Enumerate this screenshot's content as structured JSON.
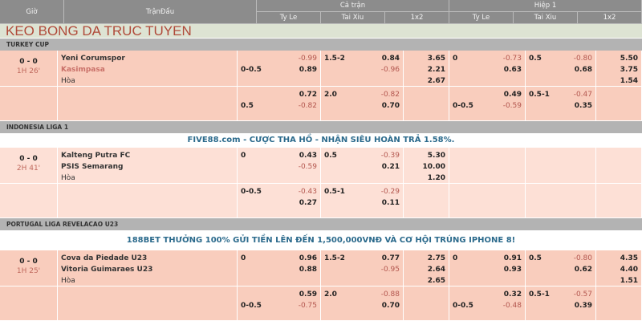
{
  "header": {
    "gio": "Giờ",
    "tran_dau": "TrậnĐấu",
    "ca_tran": "Cả trận",
    "hiep1": "Hiệp 1",
    "cols": [
      "Ty Le",
      "Tai Xiu",
      "1x2",
      "Ty Le",
      "Tai Xiu",
      "1x2"
    ]
  },
  "title": "KEO BONG DA TRUC TUYEN",
  "colors": {
    "header_bg": "#8c8c8c",
    "row_bg": "#f9cfc0",
    "row_bg_light": "#fde0d6",
    "negative": "#b3564e",
    "title": "#b04a3a",
    "banner": "#2b6a8c"
  },
  "leagues": [
    {
      "name": "TURKEY CUP",
      "banner": "",
      "bg": "#f9cdbd",
      "score": "0 - 0",
      "status": "1H 26'",
      "teams": [
        {
          "name": "Yeni Corumspor",
          "red": false
        },
        {
          "name": "Kasimpasa",
          "red": true
        },
        {
          "name": "Hòa",
          "red": false
        }
      ],
      "rows": [
        [
          [
            [
              "",
              "-0.99"
            ],
            [
              "0-0.5",
              "0.89"
            ]
          ],
          [
            [
              "1.5-2",
              "0.84"
            ],
            [
              "",
              "-0.96"
            ]
          ],
          [
            [
              "",
              "3.65"
            ],
            [
              "",
              "2.21"
            ],
            [
              "",
              "2.67"
            ]
          ],
          [
            [
              "0",
              "-0.73"
            ],
            [
              "",
              "0.63"
            ]
          ],
          [
            [
              "0.5",
              "-0.80"
            ],
            [
              "",
              "0.68"
            ]
          ],
          [
            [
              "",
              "5.50"
            ],
            [
              "",
              "3.75"
            ],
            [
              "",
              "1.54"
            ]
          ]
        ],
        [
          [
            [
              "",
              "0.72"
            ],
            [
              "0.5",
              "-0.82"
            ]
          ],
          [
            [
              "2.0",
              "-0.82"
            ],
            [
              "",
              "0.70"
            ]
          ],
          [],
          [
            [
              "",
              "0.49"
            ],
            [
              "0-0.5",
              "-0.59"
            ]
          ],
          [
            [
              "0.5-1",
              "-0.47"
            ],
            [
              "",
              "0.35"
            ]
          ],
          []
        ]
      ]
    },
    {
      "name": "INDONESIA LIGA 1",
      "banner": "FIVE88.com - CƯỢC THA HỒ - NHẬN SIÊU HOÀN TRẢ 1.58%.",
      "bg": "#fde0d6",
      "score": "0 - 0",
      "status": "2H 41'",
      "teams": [
        {
          "name": "Kalteng Putra FC",
          "red": false
        },
        {
          "name": "PSIS Semarang",
          "red": false
        },
        {
          "name": "Hòa",
          "red": false
        }
      ],
      "rows": [
        [
          [
            [
              "0",
              "0.43"
            ],
            [
              "",
              "-0.59"
            ]
          ],
          [
            [
              "0.5",
              "-0.39"
            ],
            [
              "",
              "0.21"
            ]
          ],
          [
            [
              "",
              "5.30"
            ],
            [
              "",
              "10.00"
            ],
            [
              "",
              "1.20"
            ]
          ],
          [],
          [],
          []
        ],
        [
          [
            [
              "0-0.5",
              "-0.43"
            ],
            [
              "",
              "0.27"
            ]
          ],
          [
            [
              "0.5-1",
              "-0.29"
            ],
            [
              "",
              "0.11"
            ]
          ],
          [],
          [],
          [],
          []
        ]
      ]
    },
    {
      "name": "PORTUGAL LIGA REVELACAO U23",
      "banner": "188BET THƯỞNG 100% GỬI TIỀN LÊN ĐẾN 1,500,000VNĐ VÀ CƠ HỘI TRÚNG IPHONE 8!",
      "bg": "#f9cdbd",
      "score": "0 - 0",
      "status": "1H 25'",
      "teams": [
        {
          "name": "Cova da Piedade U23",
          "red": false
        },
        {
          "name": "Vitoria Guimaraes U23",
          "red": false
        },
        {
          "name": "Hòa",
          "red": false
        }
      ],
      "rows": [
        [
          [
            [
              "0",
              "0.96"
            ],
            [
              "",
              "0.88"
            ]
          ],
          [
            [
              "1.5-2",
              "0.77"
            ],
            [
              "",
              "-0.95"
            ]
          ],
          [
            [
              "",
              "2.75"
            ],
            [
              "",
              "2.64"
            ],
            [
              "",
              "2.65"
            ]
          ],
          [
            [
              "0",
              "0.91"
            ],
            [
              "",
              "0.93"
            ]
          ],
          [
            [
              "0.5",
              "-0.80"
            ],
            [
              "",
              "0.62"
            ]
          ],
          [
            [
              "",
              "4.35"
            ],
            [
              "",
              "4.40"
            ],
            [
              "",
              "1.51"
            ]
          ]
        ],
        [
          [
            [
              "",
              "0.59"
            ],
            [
              "0-0.5",
              "-0.75"
            ]
          ],
          [
            [
              "2.0",
              "-0.88"
            ],
            [
              "",
              "0.70"
            ]
          ],
          [],
          [
            [
              "",
              "0.32"
            ],
            [
              "0-0.5",
              "-0.48"
            ]
          ],
          [
            [
              "0.5-1",
              "-0.57"
            ],
            [
              "",
              "0.39"
            ]
          ],
          []
        ]
      ]
    }
  ]
}
